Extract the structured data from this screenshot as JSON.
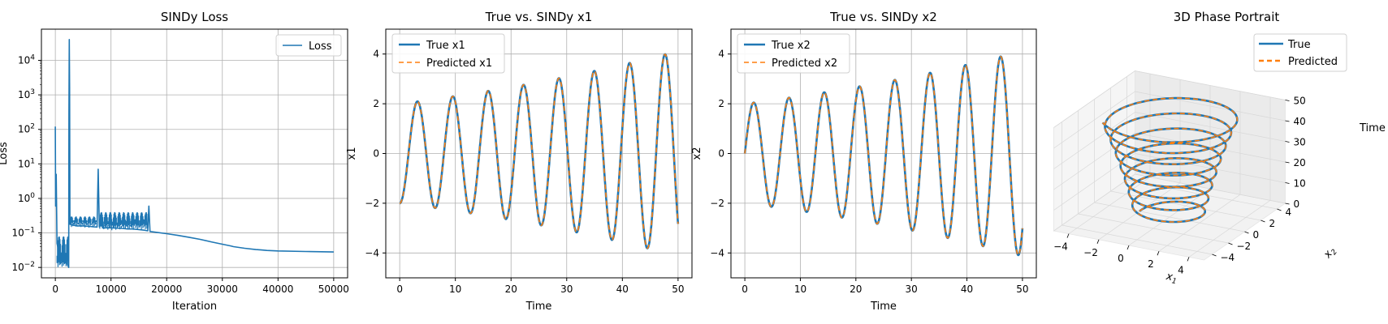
{
  "chart_data": [
    {
      "type": "line",
      "title": "SINDy Loss",
      "xlabel": "Iteration",
      "ylabel": "Loss",
      "y_scale": "log",
      "xlim": [
        -2500,
        52500
      ],
      "ylim": [
        0.005,
        80000
      ],
      "xticks": [
        0,
        10000,
        20000,
        30000,
        40000,
        50000
      ],
      "xtick_labels": [
        "0",
        "10000",
        "20000",
        "30000",
        "40000",
        "50000"
      ],
      "yticks": [
        0.01,
        0.1,
        1,
        10,
        100,
        1000,
        10000
      ],
      "ytick_labels": [
        {
          "base": "10",
          "exp": "−2"
        },
        {
          "base": "10",
          "exp": "−1"
        },
        {
          "base": "10",
          "exp": "0"
        },
        {
          "base": "10",
          "exp": "1"
        },
        {
          "base": "10",
          "exp": "2"
        },
        {
          "base": "10",
          "exp": "3"
        },
        {
          "base": "10",
          "exp": "4"
        }
      ],
      "grid": true,
      "legend_position": "top-right",
      "series": [
        {
          "name": "Loss",
          "color": "#1f77b4",
          "points": [
            [
              0,
              120
            ],
            [
              50,
              0.6
            ],
            [
              150,
              5
            ],
            [
              300,
              0.05
            ],
            [
              600,
              0.03
            ],
            [
              900,
              0.028
            ],
            [
              1200,
              0.022
            ],
            [
              1500,
              0.018
            ],
            [
              1800,
              0.015
            ],
            [
              2100,
              0.013
            ],
            [
              2300,
              0.011
            ],
            [
              2400,
              0.01
            ],
            [
              2450,
              300
            ],
            [
              2500,
              40000
            ],
            [
              2560,
              1500
            ],
            [
              2620,
              0.18
            ],
            [
              3000,
              0.17
            ],
            [
              4000,
              0.16
            ],
            [
              5000,
              0.16
            ],
            [
              6000,
              0.155
            ],
            [
              7000,
              0.15
            ],
            [
              7500,
              0.148
            ],
            [
              7700,
              7
            ],
            [
              7900,
              0.15
            ],
            [
              8400,
              0.2
            ],
            [
              8600,
              0.14
            ],
            [
              9000,
              0.14
            ],
            [
              10000,
              0.14
            ],
            [
              12000,
              0.135
            ],
            [
              13000,
              0.13
            ],
            [
              14000,
              0.13
            ],
            [
              15000,
              0.125
            ],
            [
              16000,
              0.12
            ],
            [
              16600,
              0.115
            ],
            [
              16800,
              0.6
            ],
            [
              17000,
              0.11
            ],
            [
              18000,
              0.105
            ],
            [
              20000,
              0.095
            ],
            [
              22000,
              0.085
            ],
            [
              24000,
              0.075
            ],
            [
              26000,
              0.065
            ],
            [
              28000,
              0.055
            ],
            [
              30000,
              0.047
            ],
            [
              31500,
              0.042
            ],
            [
              32000,
              0.04
            ],
            [
              34000,
              0.036
            ],
            [
              36000,
              0.033
            ],
            [
              37000,
              0.032
            ],
            [
              38000,
              0.031
            ],
            [
              40000,
              0.03
            ],
            [
              45000,
              0.029
            ],
            [
              50000,
              0.028
            ]
          ]
        }
      ]
    },
    {
      "type": "line",
      "title": "True vs. SINDy x1",
      "xlabel": "Time",
      "ylabel": "x1",
      "xlim": [
        -2.5,
        52.5
      ],
      "ylim": [
        -5,
        5
      ],
      "xticks": [
        0,
        10,
        20,
        30,
        40,
        50
      ],
      "yticks": [
        -4,
        -2,
        0,
        2,
        4
      ],
      "grid": true,
      "legend_position": "top-left",
      "model": {
        "x0": -2,
        "g": 0.0145,
        "w": 0.989,
        "phi": -1.5708
      },
      "series": [
        {
          "name": "True x1",
          "color": "#1f77b4",
          "style": "solid"
        },
        {
          "name": "Predicted x1",
          "color": "#ff7f0e",
          "style": "dashed"
        }
      ]
    },
    {
      "type": "line",
      "title": "True vs. SINDy x2",
      "xlabel": "Time",
      "ylabel": "x2",
      "xlim": [
        -2.5,
        52.5
      ],
      "ylim": [
        -5,
        5
      ],
      "xticks": [
        0,
        10,
        20,
        30,
        40,
        50
      ],
      "yticks": [
        -4,
        -2,
        0,
        2,
        4
      ],
      "grid": true,
      "legend_position": "top-left",
      "model": {
        "x0": 0,
        "g": 0.0145,
        "w": 0.989,
        "phi": 0
      },
      "series": [
        {
          "name": "True x2",
          "color": "#1f77b4",
          "style": "solid"
        },
        {
          "name": "Predicted x2",
          "color": "#ff7f0e",
          "style": "dashed"
        }
      ]
    },
    {
      "type": "line",
      "projection": "3d",
      "title": "3D Phase Portrait",
      "xlabel": "x1",
      "ylabel": "x2",
      "zlabel": "Time",
      "xticks": [
        -4,
        -2,
        0,
        2,
        4
      ],
      "yticks": [
        -4,
        -2,
        0,
        2,
        4
      ],
      "zticks": [
        0,
        10,
        20,
        30,
        40,
        50
      ],
      "zlim": [
        0,
        50
      ],
      "legend_position": "top-right",
      "series": [
        {
          "name": "True",
          "color": "#1f77b4",
          "style": "solid"
        },
        {
          "name": "Predicted",
          "color": "#ff7f0e",
          "style": "dashed"
        }
      ]
    }
  ]
}
